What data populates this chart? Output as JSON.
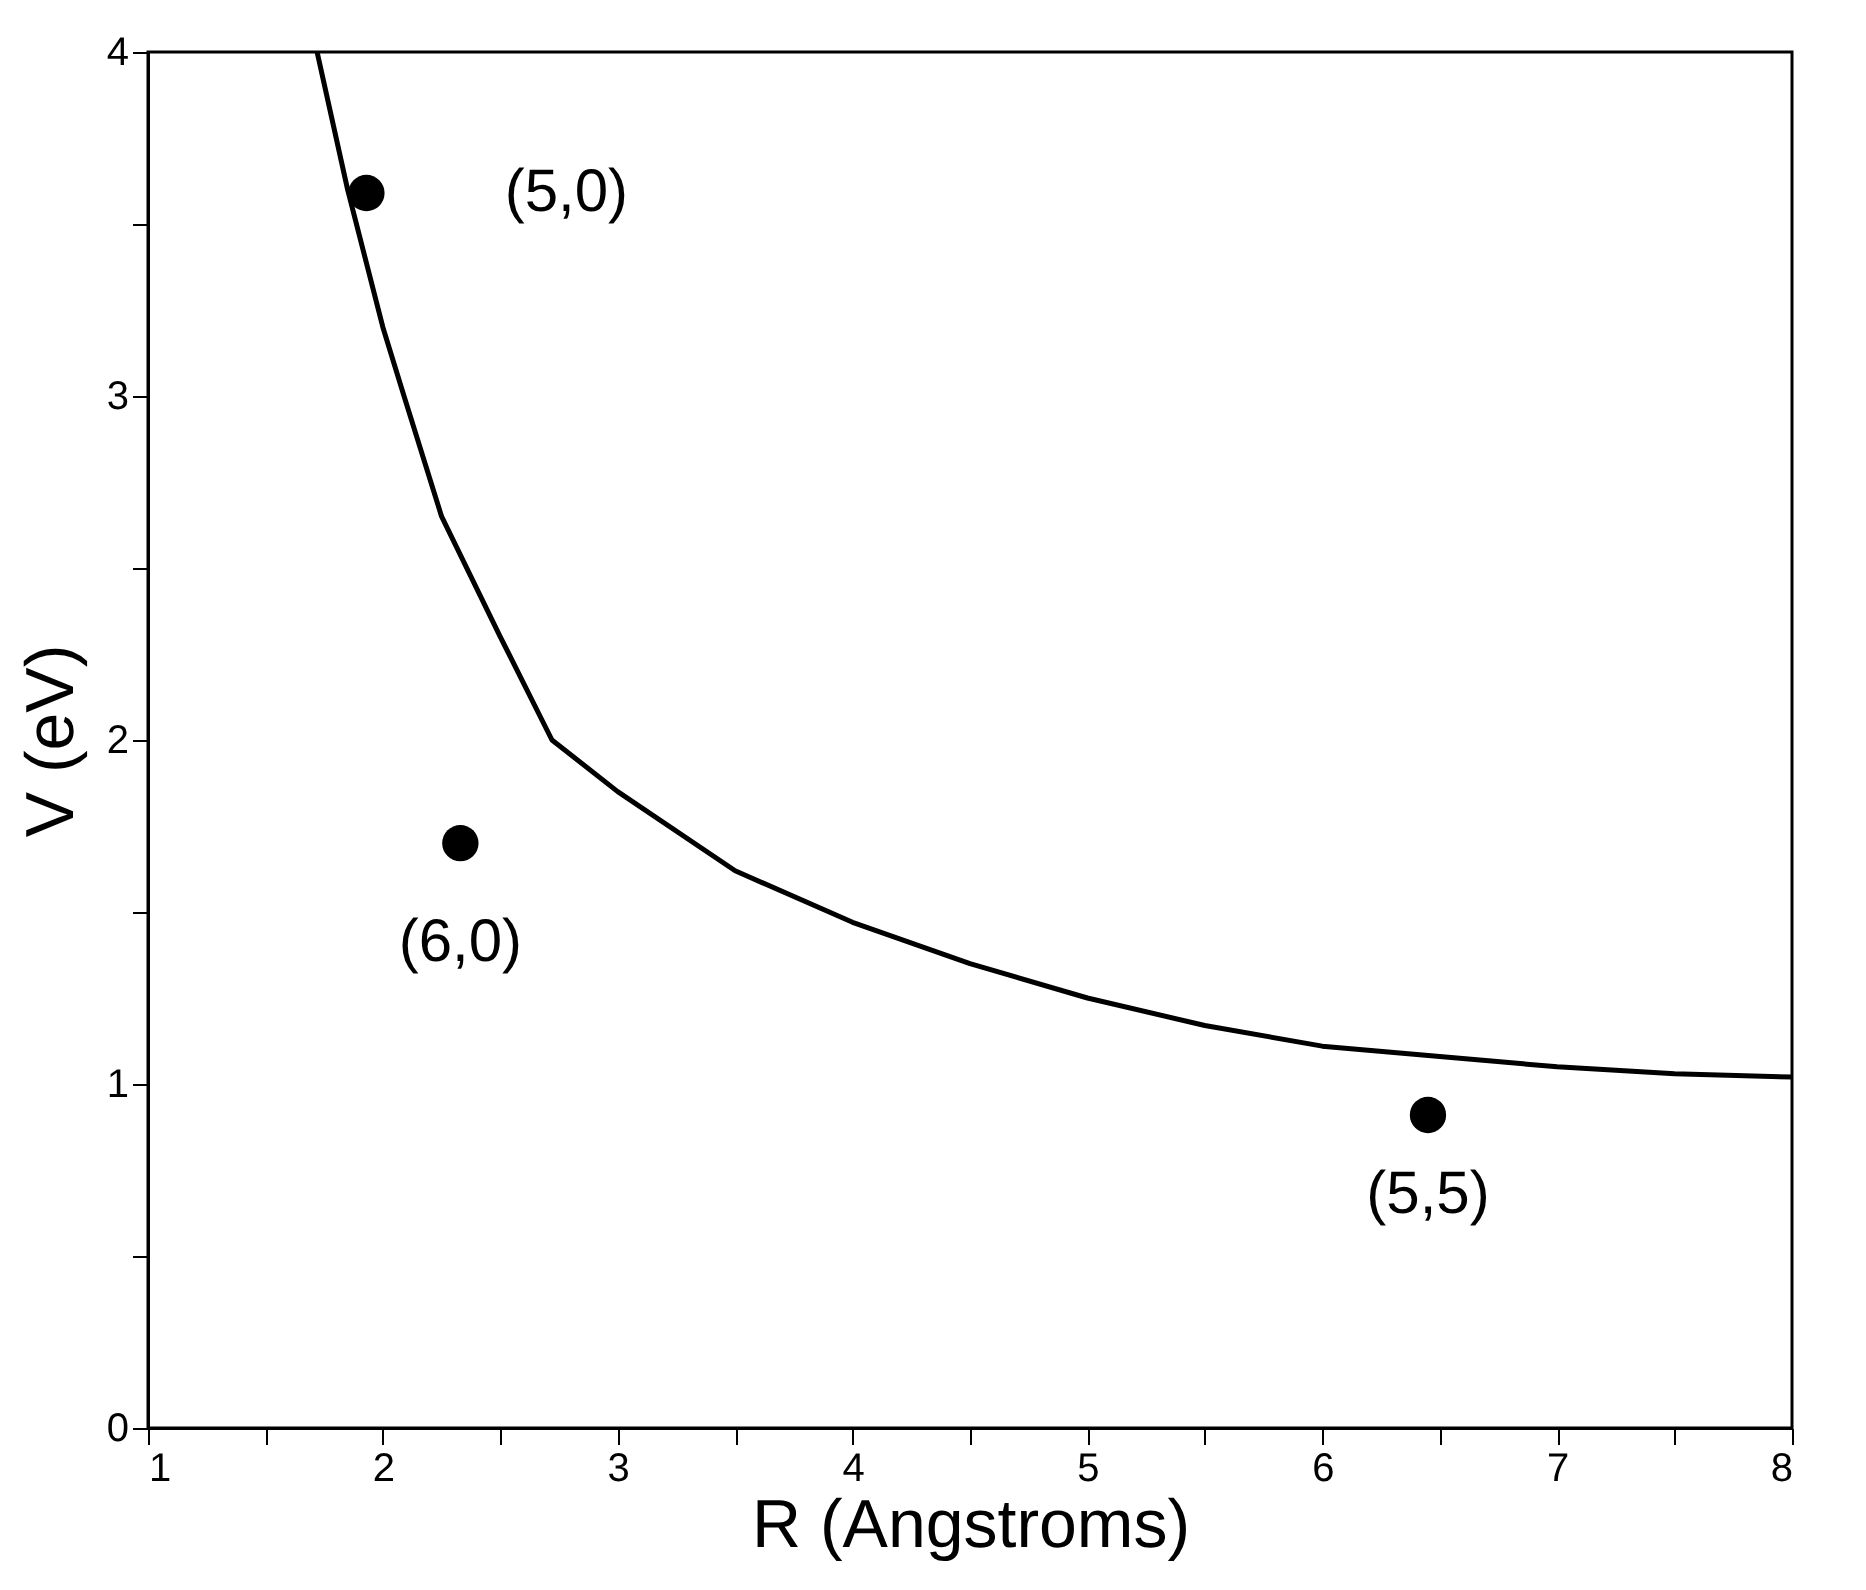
{
  "chart_data": {
    "type": "scatter",
    "xlabel": "R (Angstroms)",
    "ylabel": "V (eV)",
    "xlim": [
      1,
      8
    ],
    "ylim": [
      0,
      4
    ],
    "xticks": [
      1,
      {
        "value": 1.5,
        "label": null
      },
      2,
      {
        "value": 2.5,
        "label": null
      },
      3,
      {
        "value": 3.5,
        "label": null
      },
      4,
      {
        "value": 4.5,
        "label": null
      },
      5,
      {
        "value": 5.5,
        "label": null
      },
      6,
      {
        "value": 6.5,
        "label": null
      },
      7,
      {
        "value": 7.5,
        "label": null
      },
      8
    ],
    "yticks": [
      0,
      {
        "value": 0.5,
        "label": null
      },
      1,
      {
        "value": 1.5,
        "label": null
      },
      2,
      {
        "value": 2.5,
        "label": null
      },
      3,
      {
        "value": 3.5,
        "label": null
      },
      4
    ],
    "grid": false,
    "series": [
      {
        "type": "line",
        "color": "#000000",
        "x": [
          1.72,
          1.85,
          2.0,
          2.09,
          2.25,
          2.5,
          2.72,
          3.0,
          3.5,
          4.0,
          4.5,
          5.0,
          5.5,
          6.0,
          6.5,
          7.0,
          7.5,
          8.0
        ],
        "values": [
          4.0,
          3.6,
          3.2,
          3.0,
          2.65,
          2.3,
          2.0,
          1.85,
          1.62,
          1.47,
          1.35,
          1.25,
          1.17,
          1.11,
          1.08,
          1.05,
          1.03,
          1.02
        ]
      },
      {
        "type": "scatter",
        "color": "#000000",
        "marker": "circle",
        "x": [
          1.93,
          2.33,
          6.45
        ],
        "values": [
          3.59,
          1.7,
          0.91
        ]
      }
    ],
    "annotations": [
      {
        "text": "(5,0)",
        "x": 1.93,
        "y": 3.59
      },
      {
        "text": "(6,0)",
        "x": 2.33,
        "y": 1.7
      },
      {
        "text": "(5,5)",
        "x": 6.45,
        "y": 0.91
      }
    ]
  }
}
